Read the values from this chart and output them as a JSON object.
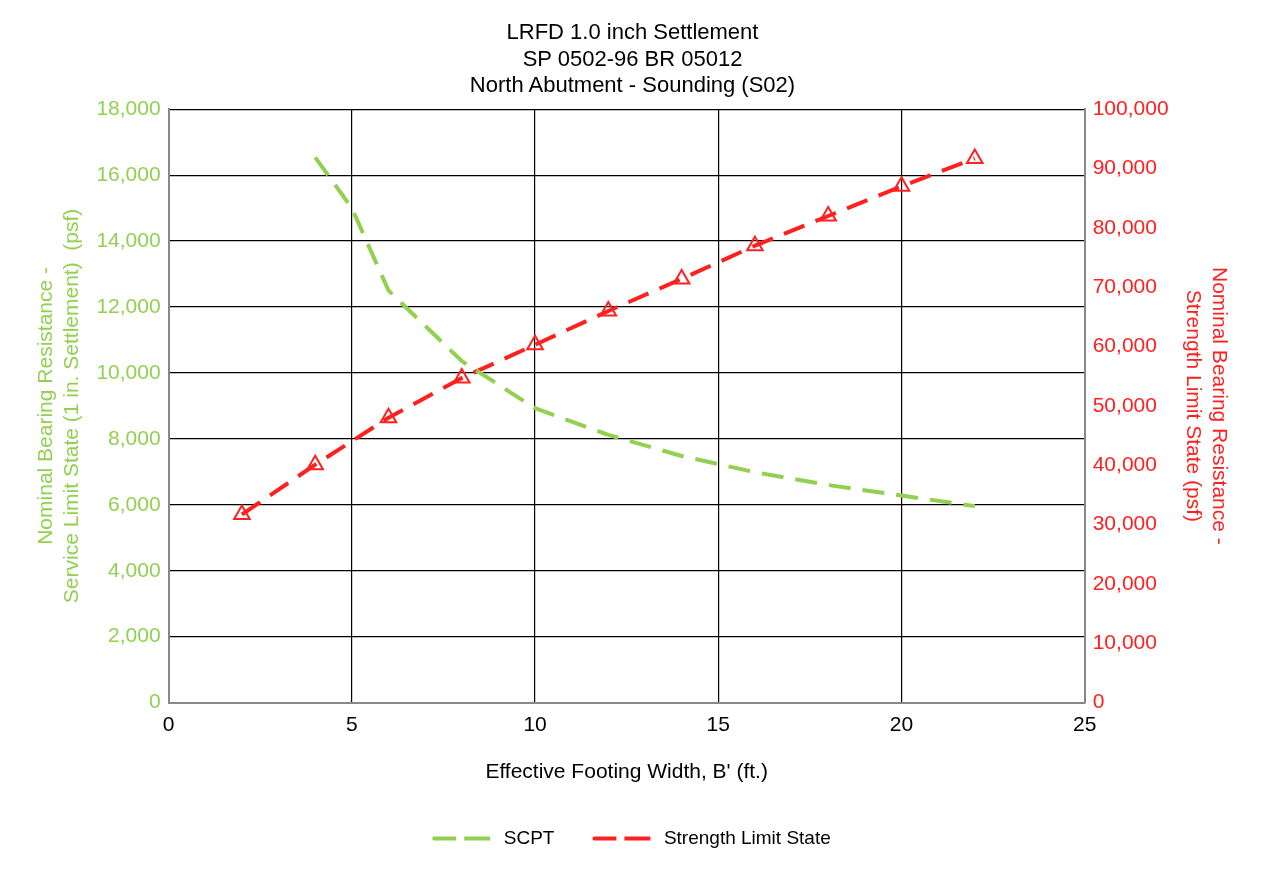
{
  "chart_data": {
    "type": "line",
    "title": [
      "LRFD 1.0 inch Settlement",
      "SP 0502-96 BR 05012",
      "North Abutment - Sounding (S02)"
    ],
    "xlabel": "Effective Footing Width, B' (ft.)",
    "ylabel": "Nominal Bearing Resistance - Service Limit State (1 in. Settlement)  (psf)",
    "y2label": "Nominal Bearing Resistance - Strength Limit State (psf)",
    "x": [
      2,
      4,
      6,
      8,
      10,
      12,
      14,
      16,
      18,
      20,
      22
    ],
    "series": [
      {
        "name": "SCPT",
        "color": "#92d050",
        "x": [
          4,
          5,
          6,
          8,
          10,
          12,
          14,
          16,
          18,
          20,
          22
        ],
        "values": [
          16540,
          15000,
          12500,
          10360,
          8930,
          8120,
          7480,
          6990,
          6600,
          6280,
          5960
        ],
        "marker": "none",
        "line_style": "dashed"
      },
      {
        "name": "Strength Limit State",
        "color": "#ff2020",
        "axis": "y2",
        "values": [
          31700,
          40100,
          48000,
          54700,
          60300,
          66000,
          71400,
          77000,
          82000,
          87000,
          91700
        ],
        "marker": "triangle",
        "line_style": "dashed"
      }
    ],
    "xlim": [
      0,
      25
    ],
    "xticks": [
      0,
      5,
      10,
      15,
      20,
      25
    ],
    "ylim": [
      0,
      18000
    ],
    "yticks": [
      {
        "value": 0,
        "label": "0"
      },
      {
        "value": 2000,
        "label": "2,000"
      },
      {
        "value": 4000,
        "label": "4,000"
      },
      {
        "value": 6000,
        "label": "6,000"
      },
      {
        "value": 8000,
        "label": "8,000"
      },
      {
        "value": 10000,
        "label": "10,000"
      },
      {
        "value": 12000,
        "label": "12,000"
      },
      {
        "value": 14000,
        "label": "14,000"
      },
      {
        "value": 16000,
        "label": "16,000"
      },
      {
        "value": 18000,
        "label": "18,000"
      }
    ],
    "y2lim": [
      0,
      100000
    ],
    "y2ticks": [
      {
        "value": 0,
        "label": "0"
      },
      {
        "value": 10000,
        "label": "10,000"
      },
      {
        "value": 20000,
        "label": "20,000"
      },
      {
        "value": 30000,
        "label": "30,000"
      },
      {
        "value": 40000,
        "label": "40,000"
      },
      {
        "value": 50000,
        "label": "50,000"
      },
      {
        "value": 60000,
        "label": "60,000"
      },
      {
        "value": 70000,
        "label": "70,000"
      },
      {
        "value": 80000,
        "label": "80,000"
      },
      {
        "value": 90000,
        "label": "90,000"
      },
      {
        "value": 100000,
        "label": "100,000"
      }
    ],
    "grid": true,
    "legend": "bottom"
  }
}
